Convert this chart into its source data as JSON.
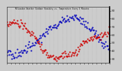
{
  "title": "Milwaukee Weather Outdoor Humidity vs. Temperature Every 5 Minutes",
  "bg_color": "#cccccc",
  "plot_bg_color": "#cccccc",
  "red_color": "#cc0000",
  "blue_color": "#0000bb",
  "n_points": 288,
  "temp_ylim": [
    25,
    95
  ],
  "humidity_ylim": [
    20,
    100
  ],
  "right_yticks": [
    90,
    80,
    70,
    60,
    50,
    40,
    30
  ],
  "marker_size": 1.2,
  "marker_every": 2,
  "temp_control_x": [
    0,
    30,
    60,
    80,
    100,
    130,
    160,
    190,
    210,
    240,
    270,
    287
  ],
  "temp_control_y": [
    72,
    75,
    65,
    55,
    40,
    32,
    35,
    38,
    50,
    55,
    60,
    70
  ],
  "humidity_control_x": [
    0,
    20,
    40,
    70,
    100,
    130,
    160,
    190,
    220,
    250,
    270,
    287
  ],
  "humidity_control_y": [
    35,
    30,
    35,
    45,
    60,
    72,
    80,
    85,
    75,
    60,
    45,
    40
  ]
}
